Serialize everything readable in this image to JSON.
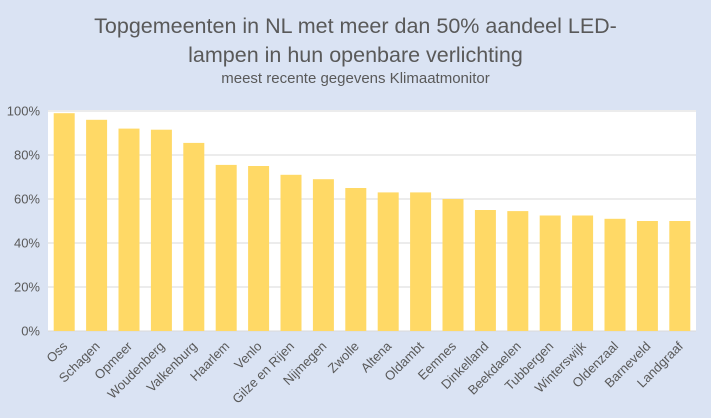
{
  "chart_data": {
    "type": "bar",
    "title_lines": [
      "Topgemeenten in NL met meer dan 50% aandeel LED-",
      "lampen in hun openbare verlichting"
    ],
    "subtitle": "meest recente gegevens Klimaatmonitor",
    "xlabel": "",
    "ylabel": "",
    "ylim": [
      0,
      100
    ],
    "yticks": [
      0,
      20,
      40,
      60,
      80,
      100
    ],
    "ytick_labels": [
      "0%",
      "20%",
      "40%",
      "60%",
      "80%",
      "100%"
    ],
    "grid": true,
    "legend": "none",
    "categories": [
      "Oss",
      "Schagen",
      "Opmeer",
      "Woudenberg",
      "Valkenburg",
      "Haarlem",
      "Venlo",
      "Gilze en Rijen",
      "Nijmegen",
      "Zwolle",
      "Altena",
      "Oldambt",
      "Eemnes",
      "Dinkelland",
      "Beekdaelen",
      "Tubbergen",
      "Winterswijk",
      "Oldenzaal",
      "Barneveld",
      "Landgraaf"
    ],
    "values": [
      99,
      96,
      92,
      91.5,
      85.5,
      75.5,
      75,
      71,
      69,
      65,
      63,
      63,
      60,
      55,
      54.5,
      52.5,
      52.5,
      51,
      50,
      50
    ],
    "colors": {
      "background": "#dae3f3",
      "plot_area": "#ffffff",
      "bar": "#ffd966",
      "grid": "#d9d9d9",
      "text": "#595959"
    }
  }
}
